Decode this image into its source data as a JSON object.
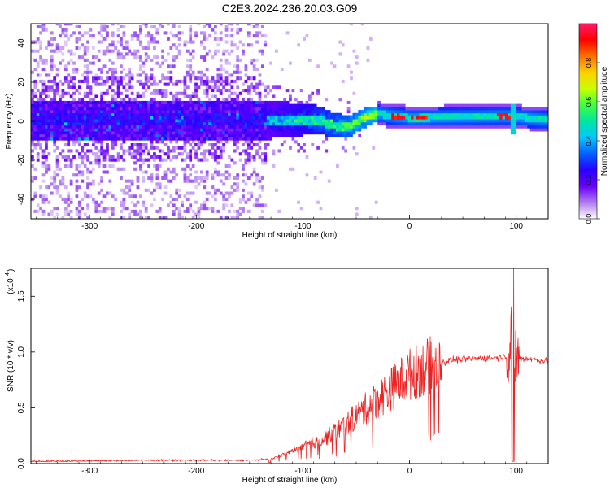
{
  "figure_title": "C2E3.2024.236.20.03.G09",
  "chart_data": [
    {
      "type": "heatmap",
      "title": "C2E3.2024.236.20.03.G09",
      "xlabel": "Height of straight line (km)",
      "ylabel": "Frequency (Hz)",
      "xlim": [
        -355,
        130
      ],
      "ylim": [
        -50,
        50
      ],
      "x_ticks": [
        -300,
        -200,
        -100,
        0,
        100
      ],
      "x_tick_labels": [
        "-300",
        "-200",
        "-100",
        "0",
        "100"
      ],
      "y_ticks": [
        -40,
        -20,
        0,
        20,
        40
      ],
      "y_tick_labels": [
        "-40",
        "-20",
        "0",
        "20",
        "40"
      ],
      "colorbar": {
        "label": "Normalized spectral amplitude",
        "range": [
          0,
          1
        ],
        "ticks": [
          0.0,
          0.2,
          0.4,
          0.6,
          0.8
        ],
        "tick_labels": [
          "0.0",
          "0.2",
          "0.4",
          "0.6",
          "0.8"
        ],
        "colormap": [
          "#ffffff",
          "#b07cf0",
          "#6a00ff",
          "#2a00ff",
          "#0060ff",
          "#00c8ff",
          "#00e6a0",
          "#40ff40",
          "#c8ff00",
          "#ffd000",
          "#ff7000",
          "#ff0000",
          "#ff1a6a"
        ]
      },
      "features": {
        "noise_region_x": [
          -355,
          -135
        ],
        "noise_band_halfwidth_hz": 10,
        "transition_x": [
          -135,
          -30
        ],
        "stable_signal_x": [
          -30,
          130
        ],
        "center_frequency_hz": [
          {
            "x": -80,
            "f": -2
          },
          {
            "x": -60,
            "f": -4
          },
          {
            "x": -40,
            "f": 2
          },
          {
            "x": -30,
            "f": 3
          },
          {
            "x": 0,
            "f": 1
          },
          {
            "x": 90,
            "f": 2
          },
          {
            "x": 130,
            "f": 0
          }
        ],
        "spike_x": 95
      }
    },
    {
      "type": "line",
      "xlabel": "Height of straight line (km)",
      "ylabel": "SNR (10 * v/v)",
      "y_scale_label": "(x10",
      "y_scale_exponent": "4",
      "y_scale_close": ")",
      "xlim": [
        -355,
        130
      ],
      "ylim": [
        0,
        1.75
      ],
      "x_ticks": [
        -300,
        -200,
        -100,
        0,
        100
      ],
      "x_tick_labels": [
        "-300",
        "-200",
        "-100",
        "0",
        "100"
      ],
      "y_ticks": [
        0.0,
        0.5,
        1.0,
        1.5
      ],
      "y_tick_labels": [
        "0.0",
        "0.5",
        "1.0",
        "1.5"
      ],
      "series": [
        {
          "name": "SNR",
          "color": "#ee2222",
          "envelope": [
            {
              "x": -355,
              "y": 0.02
            },
            {
              "x": -250,
              "y": 0.03
            },
            {
              "x": -150,
              "y": 0.03
            },
            {
              "x": -130,
              "y": 0.04
            },
            {
              "x": -100,
              "y": 0.15
            },
            {
              "x": -80,
              "y": 0.22
            },
            {
              "x": -60,
              "y": 0.35
            },
            {
              "x": -40,
              "y": 0.5
            },
            {
              "x": -20,
              "y": 0.65
            },
            {
              "x": 0,
              "y": 0.8
            },
            {
              "x": 20,
              "y": 0.88
            },
            {
              "x": 40,
              "y": 0.93
            },
            {
              "x": 80,
              "y": 0.95
            },
            {
              "x": 90,
              "y": 0.96
            },
            {
              "x": 100,
              "y": 0.95
            },
            {
              "x": 130,
              "y": 0.92
            }
          ],
          "spike": {
            "x": 97,
            "max": 1.75,
            "min": 0.02
          }
        }
      ]
    }
  ]
}
